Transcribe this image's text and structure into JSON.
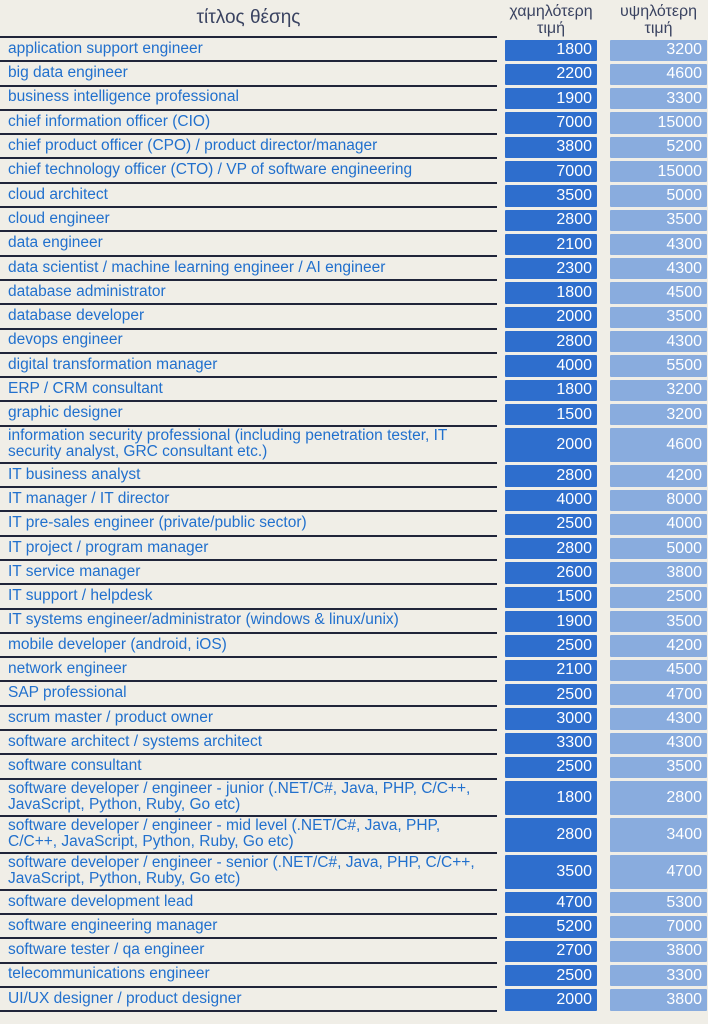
{
  "colors": {
    "background": "#f0eee7",
    "row_line": "#20253a",
    "job_title_text": "#2170cd",
    "header_text": "#3a4361",
    "low_cell": "#2e6ecd",
    "high_cell": "#89acde",
    "value_text": "#ffffff"
  },
  "chart_data": {
    "type": "table",
    "title": "",
    "columns": [
      "τίτλος θέσης",
      "χαμηλότερη τιμή",
      "υψηλότερη τιμή"
    ],
    "rows": [
      [
        "application support engineer",
        1800,
        3200
      ],
      [
        "big data engineer",
        2200,
        4600
      ],
      [
        "business intelligence professional",
        1900,
        3300
      ],
      [
        "chief information officer (CIO)",
        7000,
        15000
      ],
      [
        "chief product officer (CPO) / product director/manager",
        3800,
        5200
      ],
      [
        "chief technology officer (CTO) / VP of software engineering",
        7000,
        15000
      ],
      [
        "cloud architect",
        3500,
        5000
      ],
      [
        "cloud engineer",
        2800,
        3500
      ],
      [
        "data engineer",
        2100,
        4300
      ],
      [
        "data scientist / machine learning engineer / AI engineer",
        2300,
        4300
      ],
      [
        "database administrator",
        1800,
        4500
      ],
      [
        "database developer",
        2000,
        3500
      ],
      [
        "devops engineer",
        2800,
        4300
      ],
      [
        "digital transformation manager",
        4000,
        5500
      ],
      [
        "ERP / CRM consultant",
        1800,
        3200
      ],
      [
        "graphic designer",
        1500,
        3200
      ],
      [
        "information security professional (including penetration tester, IT security analyst, GRC consultant etc.)",
        2000,
        4600
      ],
      [
        "IT business analyst",
        2800,
        4200
      ],
      [
        "IT manager / IT director",
        4000,
        8000
      ],
      [
        "IT pre-sales engineer (private/public sector)",
        2500,
        4000
      ],
      [
        "IT project / program manager",
        2800,
        5000
      ],
      [
        "IT service manager",
        2600,
        3800
      ],
      [
        "IT support / helpdesk",
        1500,
        2500
      ],
      [
        "IT systems engineer/administrator (windows & linux/unix)",
        1900,
        3500
      ],
      [
        "mobile developer (android, iOS)",
        2500,
        4200
      ],
      [
        "network engineer",
        2100,
        4500
      ],
      [
        "SAP professional",
        2500,
        4700
      ],
      [
        "scrum master / product owner",
        3000,
        4300
      ],
      [
        "software architect / systems architect",
        3300,
        4300
      ],
      [
        "software consultant",
        2500,
        3500
      ],
      [
        "software developer / engineer - junior (.NET/C#, Java, PHP, C/C++, JavaScript, Python, Ruby, Go etc)",
        1800,
        2800
      ],
      [
        "software developer / engineer - mid level (.NET/C#, Java, PHP, C/C++, JavaScript, Python, Ruby, Go etc)",
        2800,
        3400
      ],
      [
        "software developer / engineer - senior (.NET/C#, Java, PHP, C/C++, JavaScript, Python, Ruby, Go etc)",
        3500,
        4700
      ],
      [
        "software development lead",
        4700,
        5300
      ],
      [
        "software engineering manager",
        5200,
        7000
      ],
      [
        "software tester / qa engineer",
        2700,
        3800
      ],
      [
        "telecommunications engineer",
        2500,
        3300
      ],
      [
        "UI/UX designer / product designer",
        2000,
        3800
      ]
    ]
  }
}
